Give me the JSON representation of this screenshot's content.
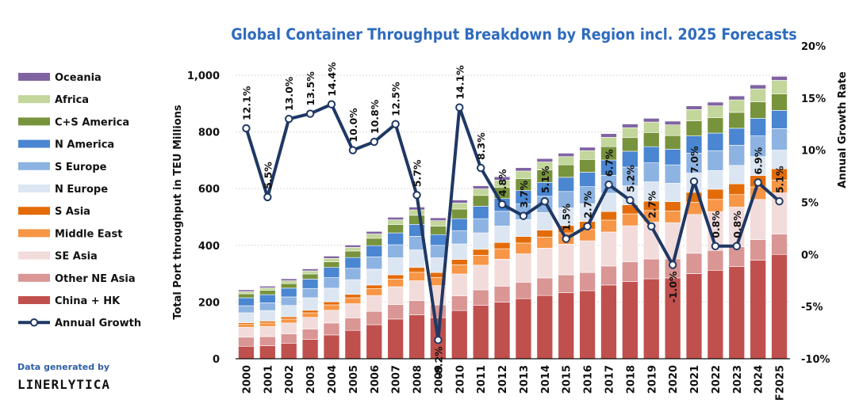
{
  "chart_data": {
    "type": "bar",
    "stacked": true,
    "title": "Global Container Throughput Breakdown  by Region incl. 2025 Forecasts",
    "ylabel": "Total Port throughput in TEU Millions",
    "y2label": "Annual Growth Rate",
    "ylim": [
      0,
      1000
    ],
    "y2lim": [
      -10,
      20
    ],
    "yticks": [
      "0",
      "200",
      "400",
      "600",
      "800",
      "1,000"
    ],
    "y2ticks": [
      "-10%",
      "-5%",
      "0%",
      "5%",
      "10%",
      "15%",
      "20%"
    ],
    "grid": true,
    "legend_position": "left",
    "categories": [
      "2000",
      "2001",
      "2002",
      "2003",
      "2004",
      "2005",
      "2006",
      "2007",
      "2008",
      "2009",
      "2010",
      "2011",
      "2012",
      "2013",
      "2014",
      "2015",
      "2016",
      "2017",
      "2018",
      "2019",
      "2020",
      "2021",
      "2022",
      "2023",
      "2024",
      "F2025"
    ],
    "series": [
      {
        "name": "China + HK",
        "color": "#c0504d",
        "values": [
          44,
          46,
          55,
          68,
          84,
          100,
          120,
          140,
          155,
          145,
          170,
          188,
          200,
          212,
          223,
          233,
          240,
          260,
          272,
          282,
          285,
          300,
          312,
          325,
          348,
          368
        ]
      },
      {
        "name": "Other NE Asia",
        "color": "#d99694",
        "values": [
          32,
          32,
          33,
          37,
          42,
          44,
          47,
          51,
          50,
          45,
          52,
          55,
          56,
          58,
          62,
          63,
          64,
          67,
          70,
          70,
          67,
          72,
          70,
          70,
          72,
          72
        ]
      },
      {
        "name": "SE Asia",
        "color": "#f2dcdb",
        "values": [
          35,
          36,
          38,
          41,
          45,
          50,
          56,
          63,
          70,
          68,
          77,
          87,
          95,
          100,
          105,
          108,
          112,
          120,
          127,
          130,
          128,
          137,
          137,
          140,
          142,
          145
        ]
      },
      {
        "name": "Middle East",
        "color": "#f79646",
        "values": [
          10,
          12,
          14,
          16,
          19,
          21,
          24,
          27,
          30,
          29,
          32,
          35,
          37,
          38,
          39,
          40,
          40,
          42,
          42,
          41,
          41,
          43,
          43,
          44,
          44,
          45
        ]
      },
      {
        "name": "S Asia",
        "color": "#e36c09",
        "values": [
          6,
          7,
          8,
          9,
          11,
          12,
          13,
          15,
          17,
          17,
          19,
          21,
          22,
          23,
          25,
          26,
          28,
          30,
          32,
          33,
          33,
          35,
          36,
          38,
          40,
          40
        ]
      },
      {
        "name": "N Europe",
        "color": "#dce6f2",
        "values": [
          35,
          37,
          40,
          44,
          48,
          52,
          56,
          60,
          62,
          52,
          55,
          58,
          58,
          60,
          62,
          62,
          63,
          65,
          67,
          68,
          65,
          68,
          66,
          65,
          67,
          66
        ]
      },
      {
        "name": "S Europe",
        "color": "#8db3e2",
        "values": [
          25,
          27,
          30,
          33,
          37,
          40,
          43,
          46,
          48,
          44,
          47,
          50,
          52,
          55,
          57,
          58,
          60,
          63,
          66,
          67,
          65,
          70,
          70,
          71,
          73,
          76
        ]
      },
      {
        "name": "N America",
        "color": "#4a86d1",
        "values": [
          28,
          29,
          31,
          33,
          36,
          38,
          40,
          42,
          42,
          38,
          42,
          44,
          45,
          47,
          49,
          50,
          51,
          54,
          56,
          57,
          55,
          61,
          62,
          60,
          62,
          64
        ]
      },
      {
        "name": "C+S America",
        "color": "#77933c",
        "values": [
          14,
          15,
          16,
          18,
          20,
          23,
          26,
          29,
          32,
          30,
          34,
          38,
          40,
          42,
          44,
          44,
          45,
          47,
          48,
          50,
          48,
          53,
          54,
          56,
          58,
          58
        ]
      },
      {
        "name": "Africa",
        "color": "#c3d69b",
        "values": [
          8,
          9,
          10,
          11,
          12,
          13,
          15,
          17,
          19,
          19,
          21,
          23,
          25,
          27,
          28,
          29,
          31,
          33,
          35,
          37,
          38,
          40,
          42,
          44,
          46,
          48
        ]
      },
      {
        "name": "Oceania",
        "color": "#8064a2",
        "values": [
          6,
          6,
          7,
          7,
          8,
          8,
          9,
          9,
          10,
          10,
          11,
          11,
          12,
          12,
          12,
          12,
          12,
          13,
          13,
          13,
          13,
          13,
          13,
          14,
          14,
          14
        ]
      }
    ],
    "growth": {
      "name": "Annual Growth",
      "color": "#1f3864",
      "values": [
        12.1,
        5.5,
        13.0,
        13.5,
        14.4,
        10.0,
        10.8,
        12.5,
        5.7,
        -8.2,
        14.1,
        8.3,
        4.8,
        3.7,
        5.1,
        1.5,
        2.7,
        6.7,
        5.2,
        2.7,
        -1.0,
        7.0,
        0.8,
        0.8,
        6.9,
        5.1
      ],
      "labels": [
        "12.1%",
        "5.5%",
        "13.0%",
        "13.5%",
        "14.4%",
        "10.0%",
        "10.8%",
        "12.5%",
        "5.7%",
        "-8.2%",
        "14.1%",
        "8.3%",
        "4.8%",
        "3.7%",
        "5.1%",
        "1.5%",
        "2.7%",
        "6.7%",
        "5.2%",
        "2.7%",
        "-1.0%",
        "7.0%",
        "0.8%",
        "0.8%",
        "6.9%",
        "5.1%"
      ]
    }
  },
  "credit": {
    "line1": "Data generated by",
    "line2": "LINERLYTICA"
  }
}
